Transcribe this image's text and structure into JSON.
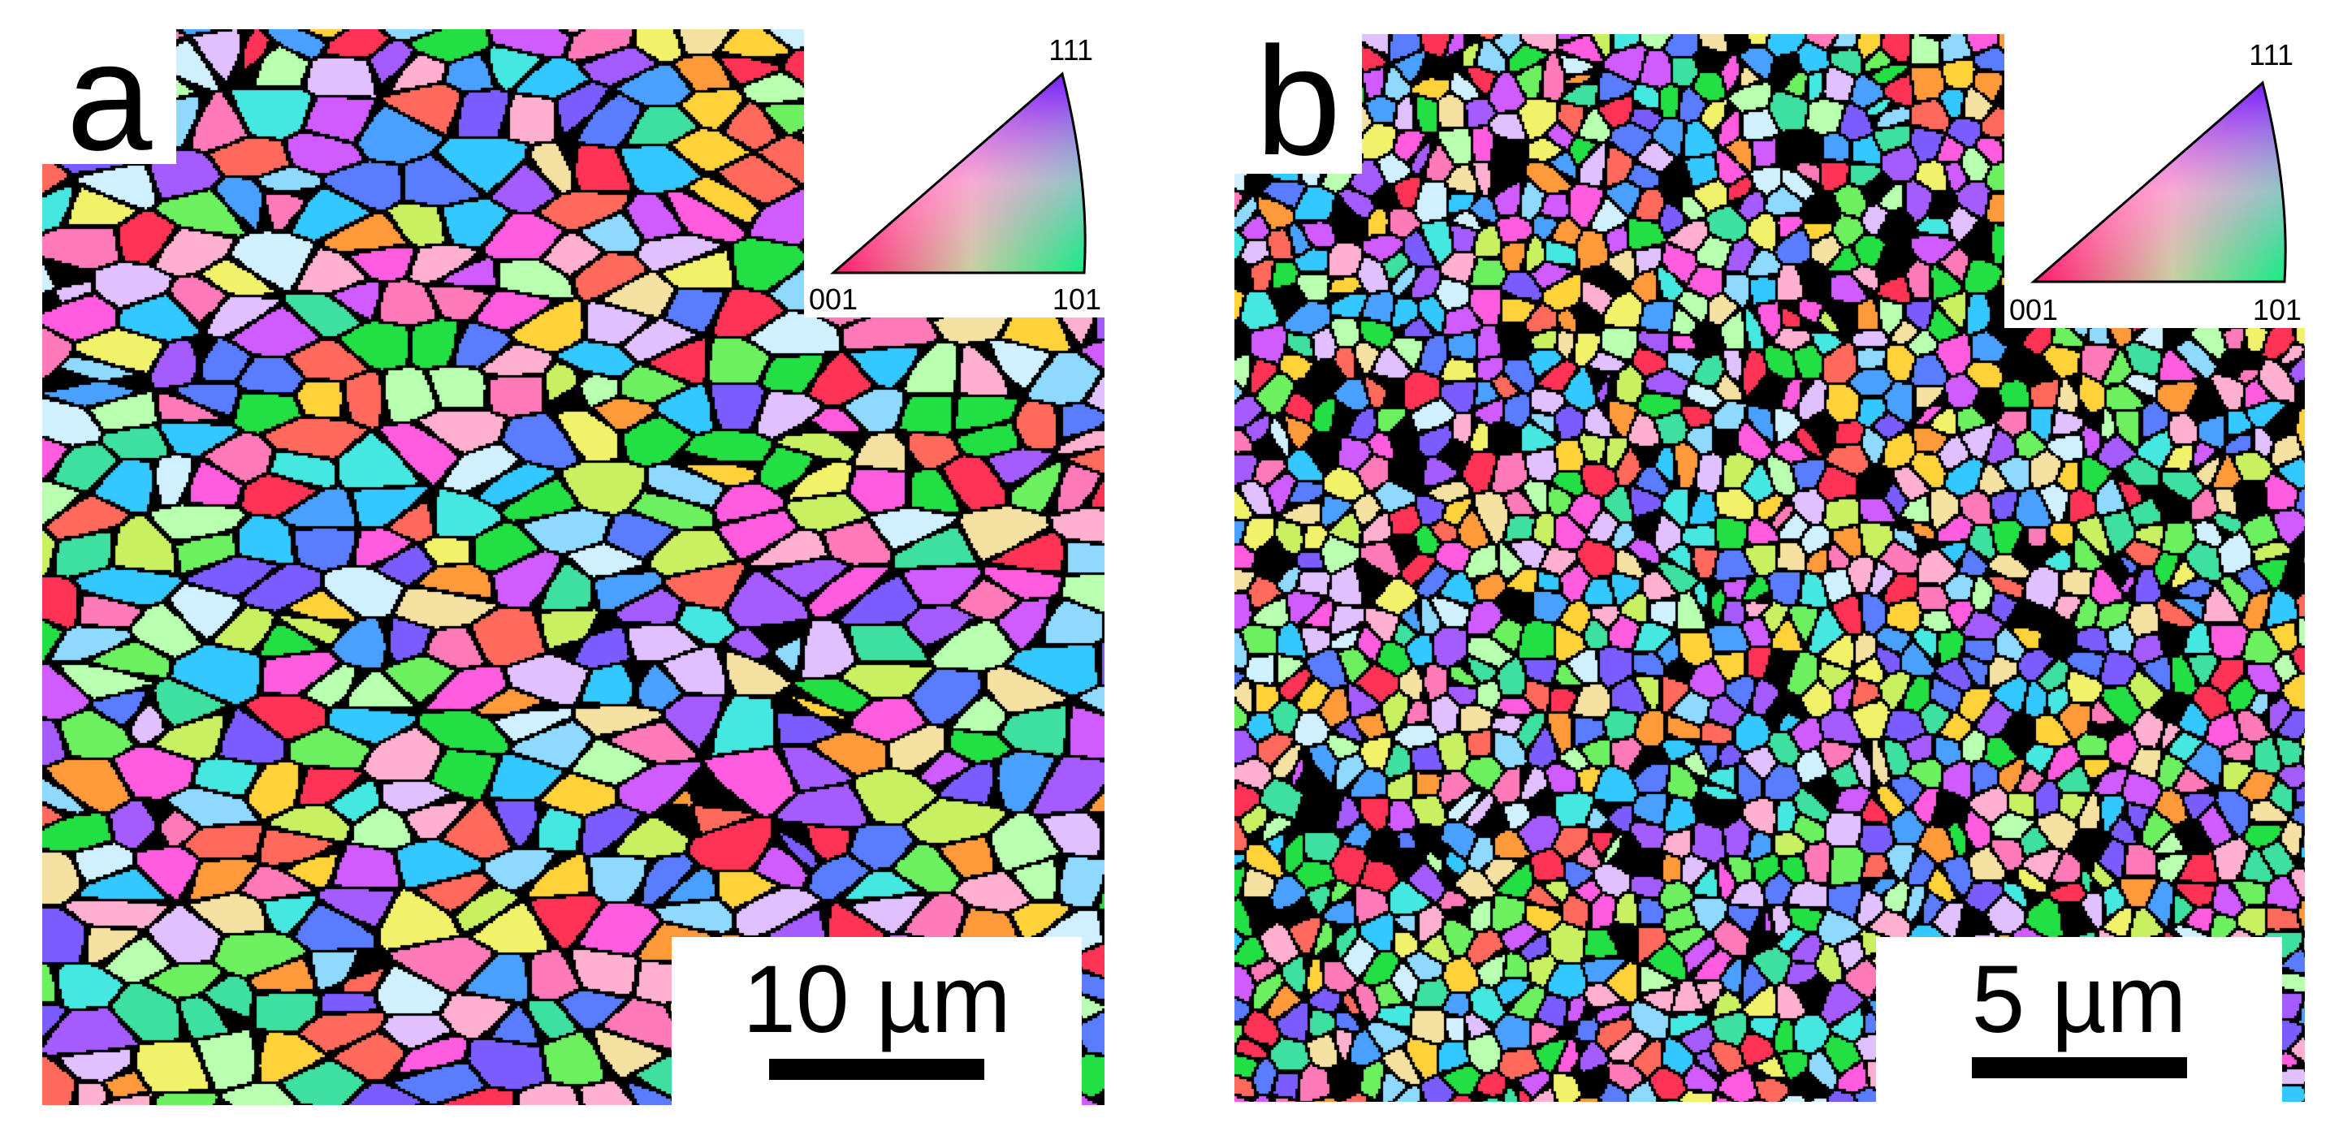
{
  "panels": [
    {
      "letter": "a",
      "scale_label": "10 µm",
      "legend": {
        "v111": "111",
        "v001": "001",
        "v101": "101"
      }
    },
    {
      "letter": "b",
      "scale_label": "5 µm",
      "legend": {
        "v111": "111",
        "v001": "001",
        "v101": "101"
      }
    }
  ],
  "colors": {
    "boundary": "#000000",
    "pole_001": "#ff2020",
    "pole_101": "#20e020",
    "pole_111": "#3030ff"
  }
}
